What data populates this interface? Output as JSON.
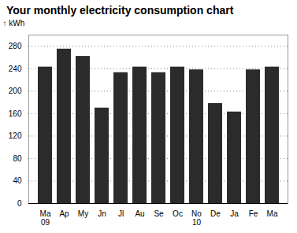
{
  "chart_data": {
    "type": "bar",
    "title": "Your monthly electricity consumption chart",
    "y_label": "kWh",
    "categories": [
      "Ma",
      "Ap",
      "My",
      "Jn",
      "Jl",
      "Au",
      "Se",
      "Oc",
      "No",
      "De",
      "Ja",
      "Fe",
      "Ma"
    ],
    "values": [
      243,
      275,
      262,
      170,
      233,
      243,
      233,
      243,
      238,
      178,
      163,
      238,
      243
    ],
    "color": "#2b2b2b",
    "ylim": [
      0,
      300
    ],
    "yticks": [
      0,
      40,
      80,
      120,
      160,
      200,
      240,
      280
    ],
    "grid": true,
    "annotations": [
      {
        "text": "09",
        "index": 0
      },
      {
        "text": "10",
        "index": 8
      }
    ]
  }
}
